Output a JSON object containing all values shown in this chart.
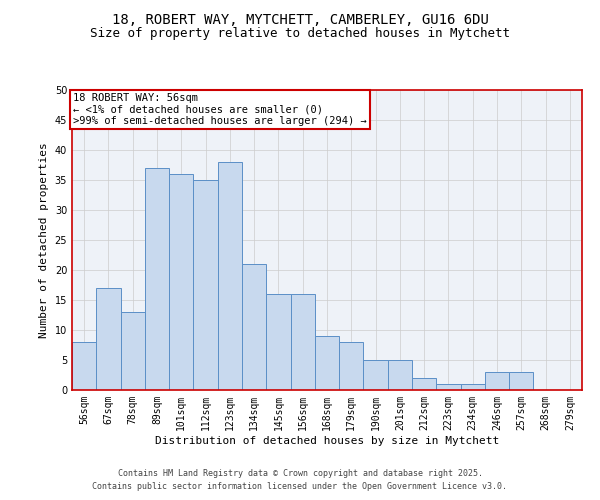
{
  "title_line1": "18, ROBERT WAY, MYTCHETT, CAMBERLEY, GU16 6DU",
  "title_line2": "Size of property relative to detached houses in Mytchett",
  "xlabel": "Distribution of detached houses by size in Mytchett",
  "ylabel": "Number of detached properties",
  "annotation_title": "18 ROBERT WAY: 56sqm",
  "annotation_line2": "← <1% of detached houses are smaller (0)",
  "annotation_line3": ">99% of semi-detached houses are larger (294) →",
  "categories": [
    "56sqm",
    "67sqm",
    "78sqm",
    "89sqm",
    "101sqm",
    "112sqm",
    "123sqm",
    "134sqm",
    "145sqm",
    "156sqm",
    "168sqm",
    "179sqm",
    "190sqm",
    "201sqm",
    "212sqm",
    "223sqm",
    "234sqm",
    "246sqm",
    "257sqm",
    "268sqm",
    "279sqm"
  ],
  "values": [
    8,
    17,
    13,
    37,
    36,
    35,
    38,
    21,
    16,
    16,
    9,
    8,
    5,
    5,
    2,
    1,
    1,
    3,
    3,
    0,
    0
  ],
  "bar_color": "#c8d9ee",
  "bar_edge_color": "#5b8fc7",
  "annotation_box_edge_color": "#cc0000",
  "annotation_box_face_color": "#ffffff",
  "grid_color": "#cccccc",
  "background_color": "#eef2f8",
  "ylim": [
    0,
    50
  ],
  "yticks": [
    0,
    5,
    10,
    15,
    20,
    25,
    30,
    35,
    40,
    45,
    50
  ],
  "footer_line1": "Contains HM Land Registry data © Crown copyright and database right 2025.",
  "footer_line2": "Contains public sector information licensed under the Open Government Licence v3.0.",
  "title_fontsize": 10,
  "subtitle_fontsize": 9,
  "axis_label_fontsize": 8,
  "tick_fontsize": 7,
  "annotation_fontsize": 7.5,
  "footer_fontsize": 6
}
